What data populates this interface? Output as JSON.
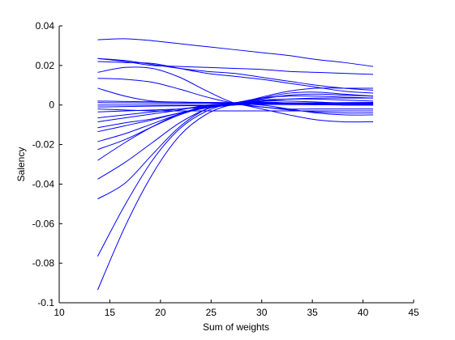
{
  "chart_data": {
    "type": "line",
    "xlabel": "Sum of weights",
    "ylabel": "Salency",
    "xlim": [
      10,
      45
    ],
    "ylim": [
      -0.1,
      0.04
    ],
    "xticks": [
      10,
      15,
      20,
      25,
      30,
      35,
      40,
      45
    ],
    "yticks": [
      -0.1,
      -0.08,
      -0.06,
      -0.04,
      -0.02,
      0,
      0.02,
      0.04
    ],
    "xtick_labels": [
      "10",
      "15",
      "20",
      "25",
      "30",
      "35",
      "40",
      "45"
    ],
    "ytick_labels": [
      "-0.1",
      "-0.08",
      "-0.06",
      "-0.04",
      "-0.02",
      "0",
      "0.02",
      "0.04"
    ],
    "grid": false,
    "line_color": "#0000ff",
    "x": [
      13.8,
      16.5,
      19.2,
      21.9,
      24.6,
      27.3,
      30.0,
      32.7,
      35.4,
      38.1,
      41.0
    ],
    "series": [
      {
        "values": [
          0.033,
          0.0335,
          0.0325,
          0.031,
          0.0295,
          0.028,
          0.0265,
          0.025,
          0.023,
          0.0215,
          0.0195
        ]
      },
      {
        "values": [
          0.0235,
          0.0225,
          0.0205,
          0.0185,
          0.017,
          0.016,
          0.014,
          0.012,
          0.01,
          0.0085,
          0.0075
        ]
      },
      {
        "values": [
          0.0235,
          0.022,
          0.02,
          0.0195,
          0.019,
          0.0185,
          0.018,
          0.017,
          0.0165,
          0.016,
          0.0155
        ]
      },
      {
        "values": [
          0.022,
          0.0215,
          0.021,
          0.0185,
          0.016,
          0.0145,
          0.013,
          0.011,
          0.009,
          0.007,
          0.006
        ]
      },
      {
        "values": [
          0.0165,
          0.019,
          0.0185,
          0.014,
          0.007,
          0.001,
          -0.001,
          -0.002,
          -0.002,
          -0.002,
          -0.002
        ]
      },
      {
        "values": [
          0.0135,
          0.013,
          0.0115,
          0.008,
          0.004,
          0.001,
          0.001,
          0.001,
          0.001,
          0.001,
          0.001
        ]
      },
      {
        "values": [
          0.0085,
          0.0045,
          0.002,
          0.0015,
          0.001,
          0.001,
          0.001,
          0.001,
          0.001,
          0.001,
          0.001
        ]
      },
      {
        "values": [
          0.002,
          0.0018,
          0.0016,
          0.0014,
          0.0013,
          0.0012,
          0.0011,
          0.001,
          0.0009,
          0.0008,
          0.0007
        ]
      },
      {
        "values": [
          0.0012,
          0.0011,
          0.001,
          0.0009,
          0.0009,
          0.0008,
          0.0007,
          0.0006,
          0.0005,
          0.0004,
          0.0003
        ]
      },
      {
        "values": [
          0.0,
          0.0,
          0.0,
          0.0,
          0.0,
          0.0005,
          0.0003,
          0.0002,
          0.0001,
          0.0,
          0.0
        ]
      },
      {
        "values": [
          -0.001,
          -0.0008,
          -0.0006,
          -0.0004,
          -0.0002,
          0.0,
          0.0005,
          0.0008,
          0.001,
          0.0012,
          0.0013
        ]
      },
      {
        "values": [
          -0.002,
          -0.0025,
          -0.003,
          -0.003,
          -0.003,
          -0.003,
          -0.003,
          -0.003,
          -0.003,
          -0.003,
          -0.003
        ]
      },
      {
        "values": [
          -0.0035,
          -0.003,
          -0.0025,
          -0.002,
          -0.001,
          0.0,
          0.002,
          0.003,
          0.0035,
          0.0035,
          0.0035
        ]
      },
      {
        "values": [
          -0.0065,
          -0.005,
          -0.0035,
          -0.002,
          -0.0005,
          0.0005,
          0.0,
          -0.002,
          -0.004,
          -0.005,
          -0.005
        ]
      },
      {
        "values": [
          -0.0085,
          -0.0065,
          -0.0045,
          -0.0025,
          0.0,
          0.0008,
          0.003,
          0.005,
          0.0055,
          0.005,
          0.0045
        ]
      },
      {
        "values": [
          -0.0115,
          -0.009,
          -0.007,
          -0.004,
          -0.0015,
          0.0005,
          0.004,
          0.007,
          0.0085,
          0.0085,
          0.0085
        ]
      },
      {
        "values": [
          -0.0135,
          -0.0105,
          -0.0075,
          -0.004,
          -0.001,
          0.0005,
          -0.002,
          -0.005,
          -0.0075,
          -0.0085,
          -0.0085
        ]
      },
      {
        "values": [
          -0.0185,
          -0.0145,
          -0.0095,
          -0.0045,
          -0.001,
          0.0005,
          0.0035,
          0.006,
          0.0065,
          0.0055,
          0.0045
        ]
      },
      {
        "values": [
          -0.0225,
          -0.0175,
          -0.011,
          -0.005,
          -0.001,
          0.0005,
          -0.001,
          -0.0025,
          -0.0035,
          -0.004,
          -0.004
        ]
      },
      {
        "values": [
          -0.028,
          -0.019,
          -0.011,
          -0.0045,
          -0.0005,
          0.0005,
          0.001,
          0.001,
          0.0005,
          0.0,
          0.0
        ]
      },
      {
        "values": [
          -0.0375,
          -0.029,
          -0.019,
          -0.009,
          -0.002,
          0.001,
          0.0025,
          0.003,
          0.003,
          0.0025,
          0.002
        ]
      },
      {
        "values": [
          -0.0475,
          -0.0395,
          -0.025,
          -0.011,
          -0.002,
          0.001,
          0.0035,
          0.0045,
          0.0045,
          0.004,
          0.0035
        ]
      },
      {
        "values": [
          -0.0765,
          -0.0505,
          -0.028,
          -0.012,
          -0.003,
          0.001,
          0.0015,
          0.001,
          0.0005,
          0.0,
          0.0
        ]
      },
      {
        "values": [
          -0.0935,
          -0.0615,
          -0.035,
          -0.0155,
          -0.0045,
          0.0005,
          0.002,
          0.002,
          0.0015,
          0.001,
          0.001
        ]
      }
    ]
  }
}
